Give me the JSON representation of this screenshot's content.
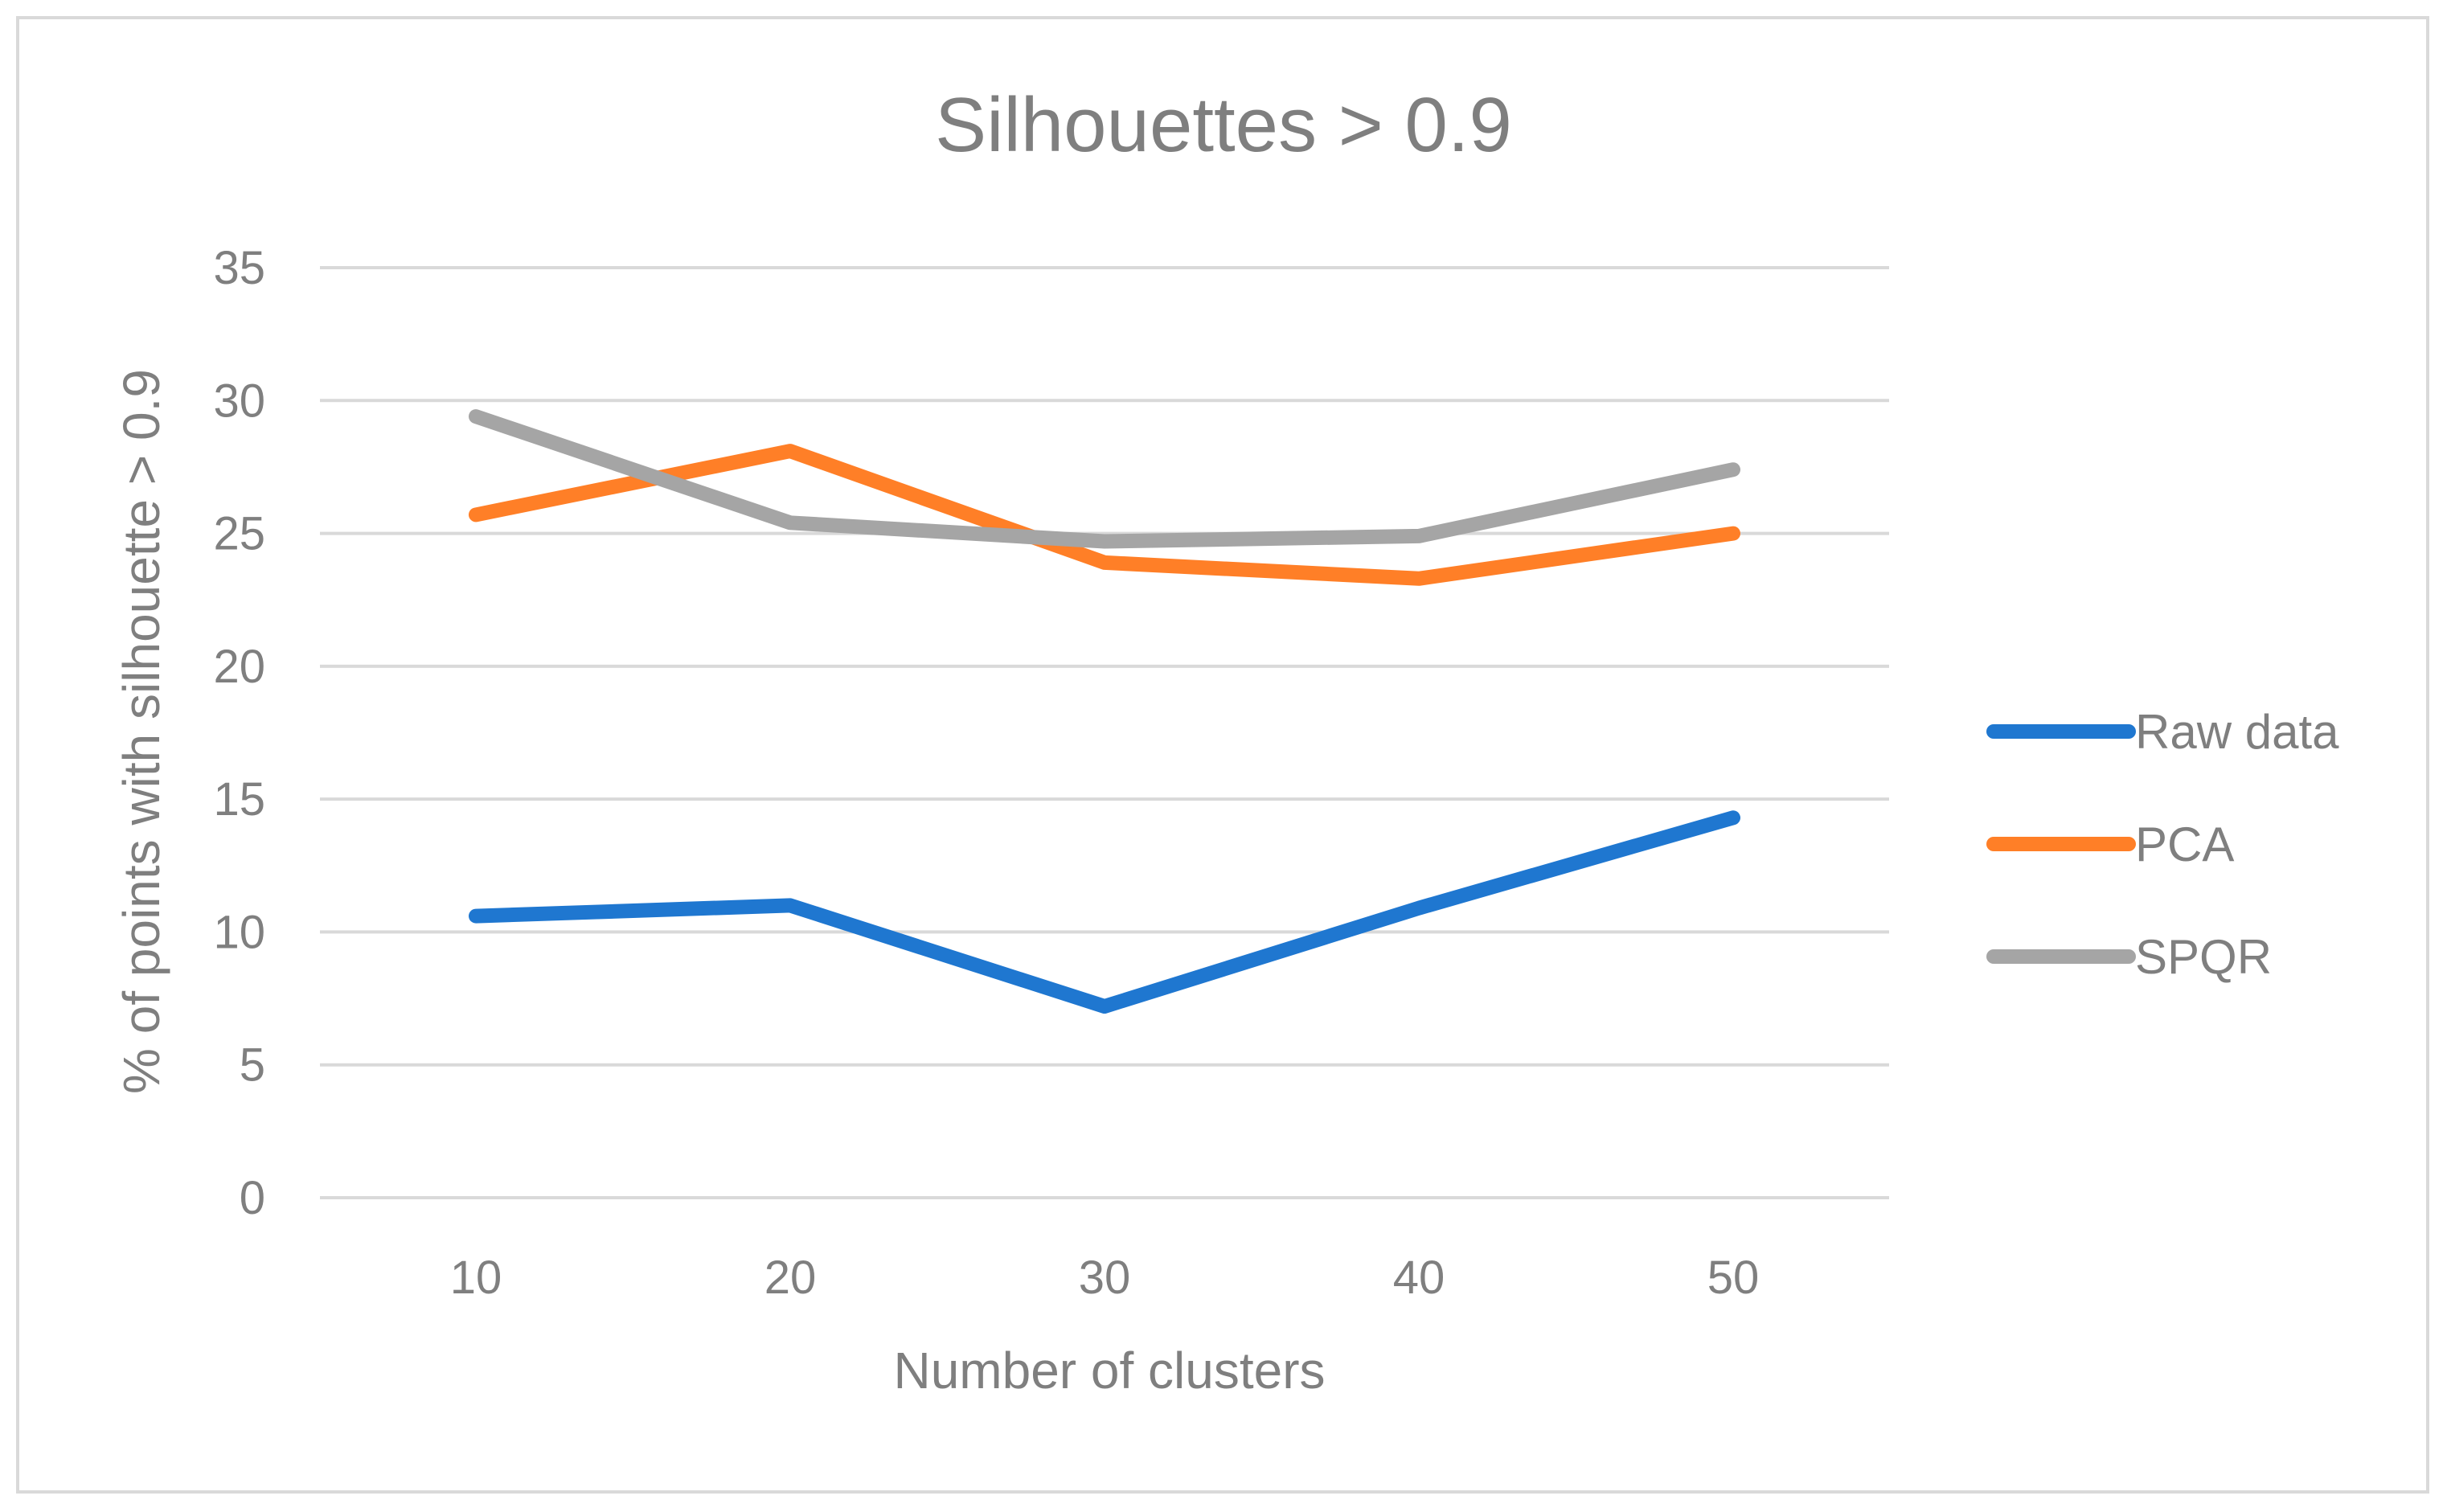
{
  "chart_data": {
    "type": "line",
    "title": "Silhouettes > 0.9",
    "xlabel": "Number of clusters",
    "ylabel": "% of points with silhouette > 0.9",
    "categories": [
      "10",
      "20",
      "30",
      "40",
      "50"
    ],
    "ylim": [
      0,
      35
    ],
    "yticks": [
      "0",
      "5",
      "10",
      "15",
      "20",
      "25",
      "30",
      "35"
    ],
    "grid": true,
    "legend_position": "right",
    "series": [
      {
        "name": "Raw data",
        "color": "#1f77d0",
        "values": [
          10.6,
          11.0,
          7.2,
          10.9,
          14.3
        ]
      },
      {
        "name": "PCA",
        "color": "#ff7f27",
        "values": [
          25.7,
          28.1,
          23.9,
          23.3,
          25.0
        ]
      },
      {
        "name": "SPQR",
        "color": "#a5a5a5",
        "values": [
          29.4,
          25.4,
          24.7,
          24.9,
          27.4
        ]
      }
    ]
  }
}
